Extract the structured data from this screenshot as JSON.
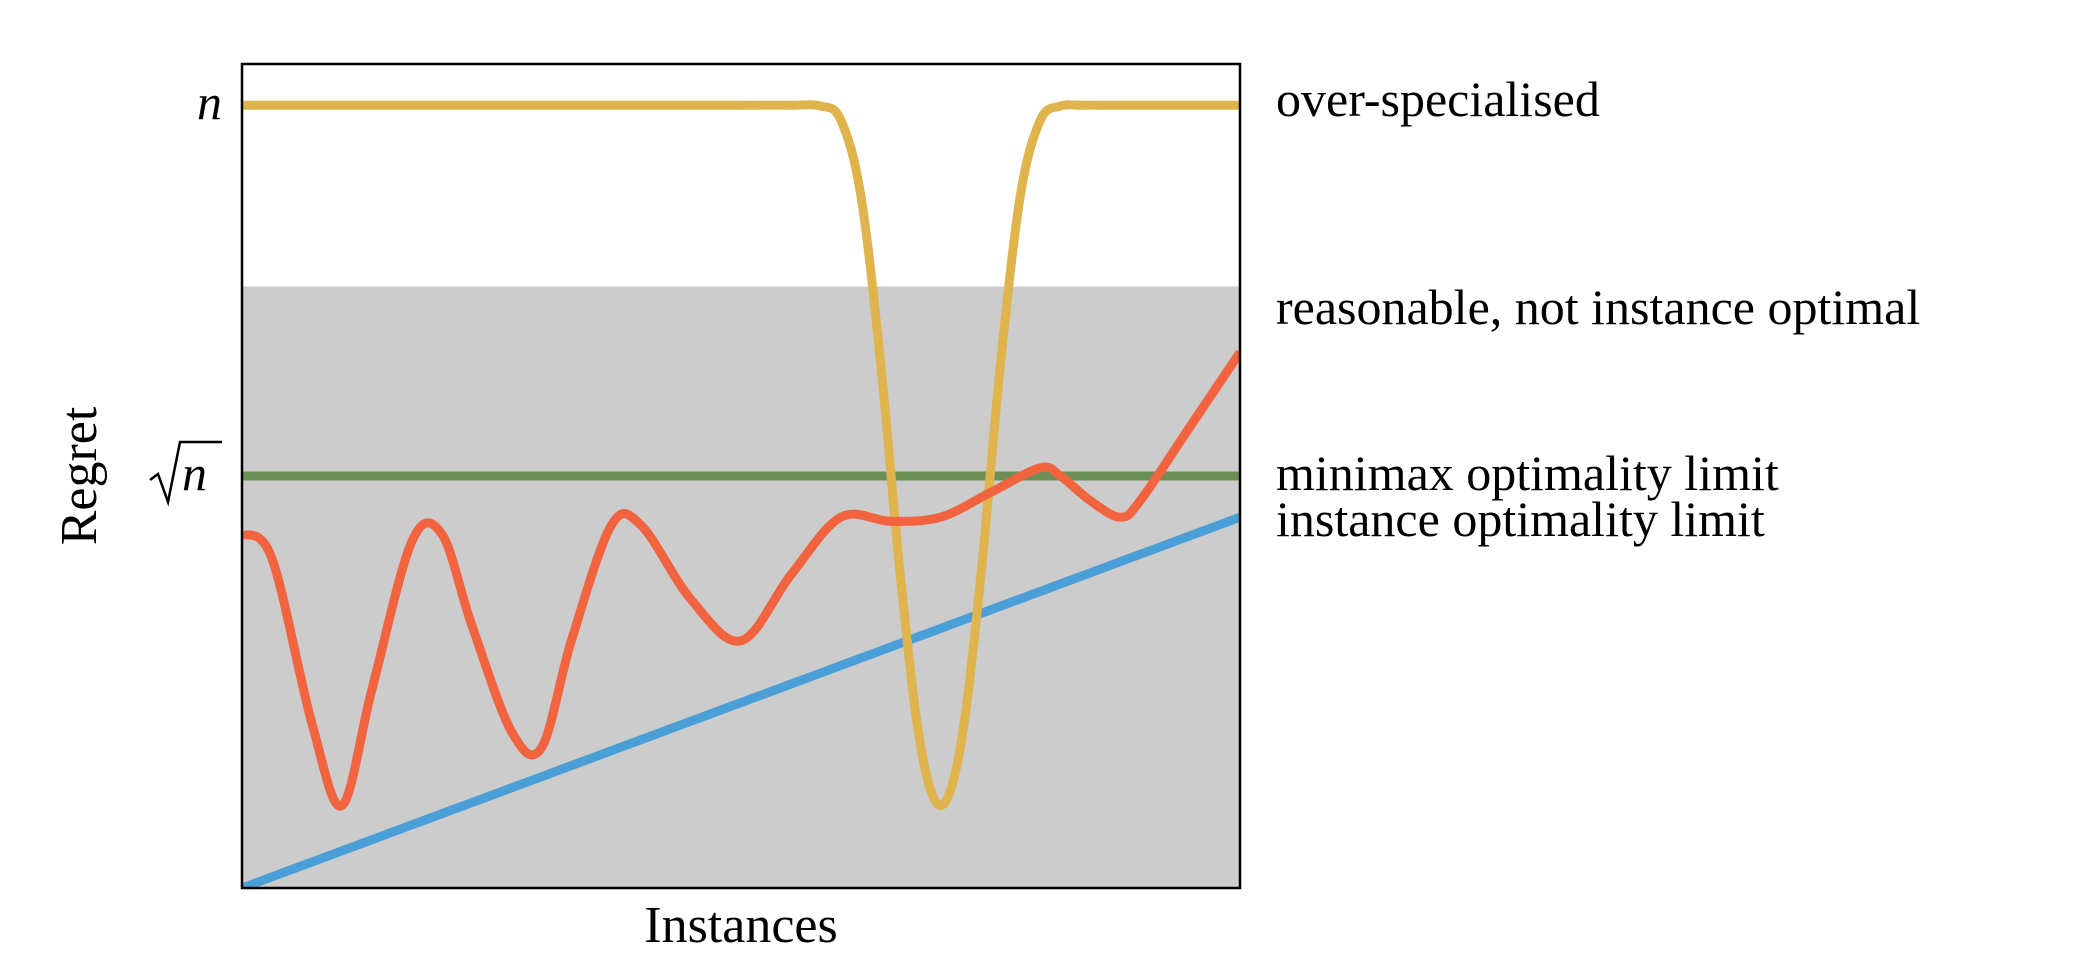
{
  "chart_data": {
    "type": "line",
    "title": "",
    "xlabel": "Instances",
    "ylabel": "Regret",
    "xlim": [
      0,
      1
    ],
    "ylim": [
      0,
      1
    ],
    "grid": false,
    "yticks": [
      {
        "label": "n",
        "value": 0.95,
        "sqrt": false
      },
      {
        "label": "n",
        "value": 0.5,
        "sqrt": true
      }
    ],
    "band": {
      "name": "reasonable region",
      "y0": 0,
      "y1": 0.73,
      "color": "#cccccc"
    },
    "series": [
      {
        "name": "over-specialised",
        "color": "#e0b44c",
        "x": [
          0,
          0.1,
          0.2,
          0.3,
          0.4,
          0.5,
          0.55,
          0.58,
          0.6,
          0.62,
          0.64,
          0.66,
          0.68,
          0.7,
          0.72,
          0.74,
          0.76,
          0.78,
          0.8,
          0.82,
          0.84,
          0.86,
          0.88,
          0.9,
          0.95,
          1.0
        ],
        "values": [
          0.95,
          0.95,
          0.95,
          0.95,
          0.95,
          0.95,
          0.95,
          0.949,
          0.932,
          0.841,
          0.636,
          0.375,
          0.172,
          0.1,
          0.172,
          0.375,
          0.636,
          0.841,
          0.932,
          0.949,
          0.95,
          0.95,
          0.95,
          0.95,
          0.95,
          0.95
        ]
      },
      {
        "name": "reasonable, not instance optimal",
        "color": "#f26440",
        "x": [
          0,
          0.03,
          0.07,
          0.1,
          0.13,
          0.17,
          0.2,
          0.23,
          0.27,
          0.3,
          0.33,
          0.37,
          0.4,
          0.45,
          0.5,
          0.55,
          0.6,
          0.65,
          0.7,
          0.75,
          0.8,
          0.82,
          0.85,
          0.88,
          0.9,
          0.95,
          1.0
        ],
        "values": [
          0.43,
          0.4,
          0.2,
          0.1,
          0.24,
          0.42,
          0.43,
          0.32,
          0.19,
          0.17,
          0.3,
          0.44,
          0.44,
          0.35,
          0.3,
          0.38,
          0.45,
          0.445,
          0.45,
          0.48,
          0.51,
          0.5,
          0.47,
          0.45,
          0.47,
          0.56,
          0.65
        ]
      },
      {
        "name": "minimax optimality limit",
        "color": "#6b8f55",
        "x": [
          0,
          1
        ],
        "values": [
          0.5,
          0.5
        ]
      },
      {
        "name": "instance optimality limit",
        "color": "#4a9fd8",
        "x": [
          0,
          1
        ],
        "values": [
          0.0,
          0.45
        ]
      }
    ]
  }
}
